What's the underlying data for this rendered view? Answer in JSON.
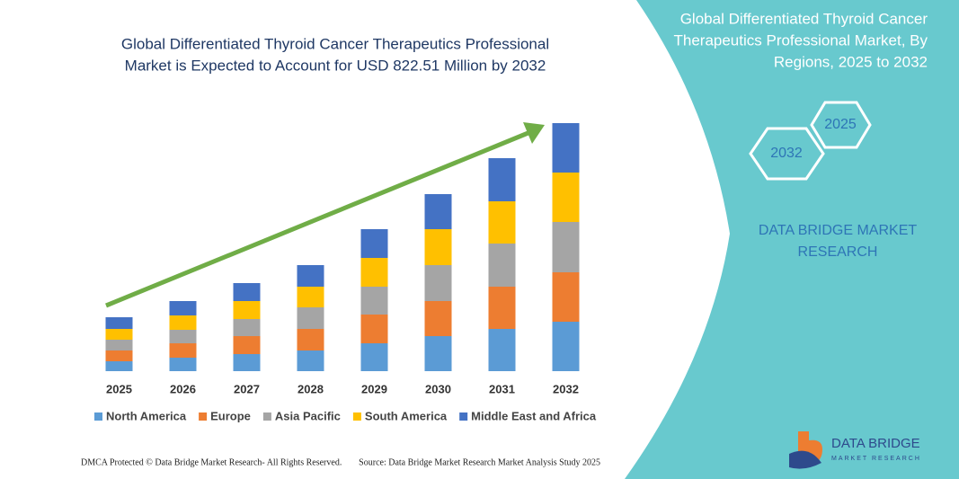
{
  "chart_data": {
    "type": "stacked_bar",
    "title": [
      "Global Differentiated Thyroid Cancer Therapeutics Professional",
      "Market is Expected to Account for USD 822.51 Million by 2032"
    ],
    "categories": [
      "2025",
      "2026",
      "2027",
      "2028",
      "2029",
      "2030",
      "2031",
      "2032"
    ],
    "series": [
      {
        "name": "North America",
        "color": "#5b9bd5",
        "values": [
          11,
          15,
          19,
          23,
          31,
          39,
          47,
          55
        ]
      },
      {
        "name": "Europe",
        "color": "#ed7d31",
        "values": [
          12,
          16,
          20,
          24,
          32,
          39,
          47,
          55
        ]
      },
      {
        "name": "Asia Pacific",
        "color": "#a5a5a5",
        "values": [
          12,
          15,
          19,
          24,
          31,
          40,
          48,
          56
        ]
      },
      {
        "name": "South America",
        "color": "#ffc000",
        "values": [
          12,
          16,
          20,
          23,
          32,
          40,
          47,
          55
        ]
      },
      {
        "name": "Middle East and Africa",
        "color": "#4472c4",
        "values": [
          13,
          16,
          20,
          24,
          32,
          39,
          48,
          55
        ]
      }
    ],
    "ylim": [
      0,
      300
    ]
  },
  "panel": {
    "title": [
      "Global Differentiated Thyroid Cancer",
      "Therapeutics Professional Market, By",
      "Regions, 2025 to 2032"
    ],
    "hex": [
      "2025",
      "2032"
    ],
    "brand": [
      "DATA BRIDGE MARKET",
      "RESEARCH"
    ]
  },
  "footer": {
    "left": "DMCA Protected © Data Bridge Market Research- All Rights Reserved.",
    "right": "Source: Data Bridge Market Research Market Analysis Study 2025"
  },
  "logo": {
    "name": "DATA BRIDGE",
    "sub": "MARKET RESEARCH"
  }
}
